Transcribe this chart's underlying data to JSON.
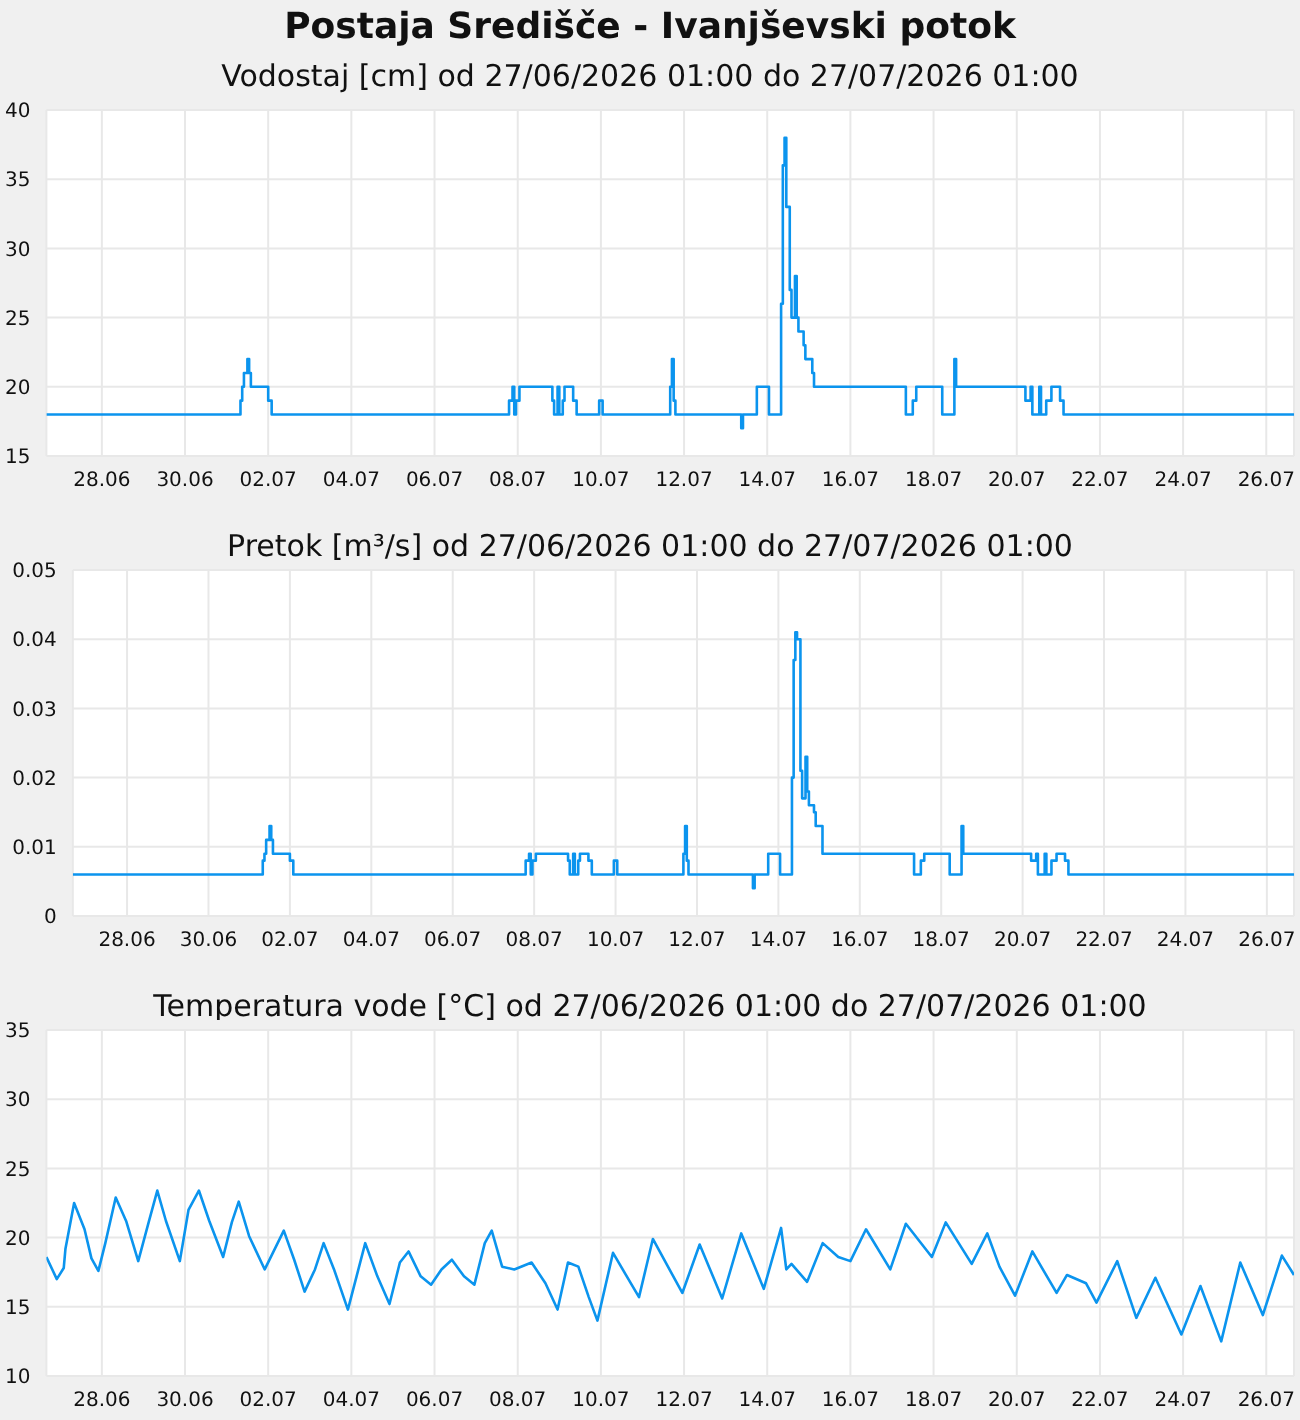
{
  "chart_data": [
    {
      "type": "step",
      "title": "Postaja Središče - Ivanjševski potok",
      "subtitle": "Vodostaj [cm] od 27/06/2026 01:00 do 27/07/2026 01:00",
      "color": "#0b94ee",
      "grid": true,
      "x": [
        "2026-06-27T01:00",
        "2026-07-01T17:00",
        "2026-07-01T18:00",
        "2026-07-01T19:00",
        "2026-07-01T21:00",
        "2026-07-01T22:00",
        "2026-07-01T23:00",
        "2026-07-02T09:00",
        "2026-07-02T11:00",
        "2026-07-08T04:00",
        "2026-07-08T06:00",
        "2026-07-08T07:00",
        "2026-07-08T08:00",
        "2026-07-08T10:00",
        "2026-07-09T05:00",
        "2026-07-09T06:00",
        "2026-07-09T08:00",
        "2026-07-09T09:00",
        "2026-07-09T11:00",
        "2026-07-09T12:00",
        "2026-07-09T17:00",
        "2026-07-09T19:00",
        "2026-07-10T08:00",
        "2026-07-10T10:00",
        "2026-07-12T01:00",
        "2026-07-12T02:00",
        "2026-07-12T03:00",
        "2026-07-12T04:00",
        "2026-07-13T18:00",
        "2026-07-13T19:00",
        "2026-07-14T03:00",
        "2026-07-14T10:00",
        "2026-07-14T17:00",
        "2026-07-14T18:00",
        "2026-07-14T19:00",
        "2026-07-14T20:00",
        "2026-07-14T22:00",
        "2026-07-14T23:00",
        "2026-07-15T01:00",
        "2026-07-15T02:00",
        "2026-07-15T03:00",
        "2026-07-15T06:00",
        "2026-07-15T07:00",
        "2026-07-15T11:00",
        "2026-07-15T12:00",
        "2026-07-17T17:00",
        "2026-07-17T21:00",
        "2026-07-17T23:00",
        "2026-07-18T14:00",
        "2026-07-18T21:00",
        "2026-07-18T22:00",
        "2026-07-20T14:00",
        "2026-07-20T17:00",
        "2026-07-20T18:00",
        "2026-07-20T22:00",
        "2026-07-20T23:00",
        "2026-07-21T02:00",
        "2026-07-21T05:00",
        "2026-07-21T10:00",
        "2026-07-21T12:00",
        "2026-07-27T01:00"
      ],
      "values": [
        18,
        19,
        20,
        21,
        22,
        21,
        20,
        19,
        18,
        19,
        20,
        18,
        19,
        20,
        19,
        18,
        20,
        18,
        19,
        20,
        19,
        18,
        19,
        18,
        20,
        22,
        19,
        18,
        17,
        18,
        20,
        18,
        26,
        36,
        38,
        33,
        27,
        25,
        28,
        25,
        24,
        23,
        22,
        21,
        20,
        18,
        19,
        20,
        18,
        22,
        20,
        19,
        20,
        18,
        20,
        18,
        19,
        20,
        19,
        18,
        18
      ],
      "xlim": [
        "2026-06-27T01:00",
        "2026-07-27T01:00"
      ],
      "xticks": [
        {
          "value": "2026-06-28T09:00",
          "label": "28.06"
        },
        {
          "value": "2026-06-30T09:00",
          "label": "30.06"
        },
        {
          "value": "2026-07-02T09:00",
          "label": "02.07"
        },
        {
          "value": "2026-07-04T09:00",
          "label": "04.07"
        },
        {
          "value": "2026-07-06T09:00",
          "label": "06.07"
        },
        {
          "value": "2026-07-08T09:00",
          "label": "08.07"
        },
        {
          "value": "2026-07-10T09:00",
          "label": "10.07"
        },
        {
          "value": "2026-07-12T09:00",
          "label": "12.07"
        },
        {
          "value": "2026-07-14T09:00",
          "label": "14.07"
        },
        {
          "value": "2026-07-16T09:00",
          "label": "16.07"
        },
        {
          "value": "2026-07-18T09:00",
          "label": "18.07"
        },
        {
          "value": "2026-07-20T09:00",
          "label": "20.07"
        },
        {
          "value": "2026-07-22T09:00",
          "label": "22.07"
        },
        {
          "value": "2026-07-24T09:00",
          "label": "24.07"
        },
        {
          "value": "2026-07-26T09:00",
          "label": "26.07"
        }
      ],
      "ylim": [
        15,
        40
      ],
      "yticks": [
        15,
        20,
        25,
        30,
        35,
        40
      ]
    },
    {
      "type": "step",
      "title": "Pretok [m³/s] od 27/06/2026 01:00 do 27/07/2026 01:00",
      "color": "#0b94ee",
      "grid": true,
      "x": [
        "2026-06-27T01:00",
        "2026-07-01T17:00",
        "2026-07-01T18:00",
        "2026-07-01T19:00",
        "2026-07-01T21:00",
        "2026-07-01T22:00",
        "2026-07-01T23:00",
        "2026-07-02T09:00",
        "2026-07-02T11:00",
        "2026-07-08T04:00",
        "2026-07-08T06:00",
        "2026-07-08T07:00",
        "2026-07-08T08:00",
        "2026-07-08T10:00",
        "2026-07-09T05:00",
        "2026-07-09T06:00",
        "2026-07-09T08:00",
        "2026-07-09T09:00",
        "2026-07-09T11:00",
        "2026-07-09T12:00",
        "2026-07-09T17:00",
        "2026-07-09T19:00",
        "2026-07-10T08:00",
        "2026-07-10T10:00",
        "2026-07-12T01:00",
        "2026-07-12T02:00",
        "2026-07-12T03:00",
        "2026-07-12T04:00",
        "2026-07-13T18:00",
        "2026-07-13T19:00",
        "2026-07-14T03:00",
        "2026-07-14T10:00",
        "2026-07-14T17:00",
        "2026-07-14T18:00",
        "2026-07-14T19:00",
        "2026-07-14T20:00",
        "2026-07-14T22:00",
        "2026-07-14T23:00",
        "2026-07-15T01:00",
        "2026-07-15T02:00",
        "2026-07-15T03:00",
        "2026-07-15T06:00",
        "2026-07-15T07:00",
        "2026-07-15T11:00",
        "2026-07-15T12:00",
        "2026-07-17T17:00",
        "2026-07-17T21:00",
        "2026-07-17T23:00",
        "2026-07-18T14:00",
        "2026-07-18T21:00",
        "2026-07-18T22:00",
        "2026-07-20T14:00",
        "2026-07-20T17:00",
        "2026-07-20T18:00",
        "2026-07-20T22:00",
        "2026-07-20T23:00",
        "2026-07-21T02:00",
        "2026-07-21T05:00",
        "2026-07-21T10:00",
        "2026-07-21T12:00",
        "2026-07-27T01:00"
      ],
      "values": [
        0.006,
        0.008,
        0.009,
        0.011,
        0.013,
        0.011,
        0.009,
        0.008,
        0.006,
        0.008,
        0.009,
        0.006,
        0.008,
        0.009,
        0.008,
        0.006,
        0.009,
        0.006,
        0.008,
        0.009,
        0.008,
        0.006,
        0.008,
        0.006,
        0.009,
        0.013,
        0.008,
        0.006,
        0.004,
        0.006,
        0.009,
        0.006,
        0.02,
        0.037,
        0.041,
        0.04,
        0.021,
        0.017,
        0.023,
        0.018,
        0.016,
        0.015,
        0.013,
        0.009,
        0.009,
        0.006,
        0.008,
        0.009,
        0.006,
        0.013,
        0.009,
        0.008,
        0.009,
        0.006,
        0.009,
        0.006,
        0.008,
        0.009,
        0.008,
        0.006,
        0.006
      ],
      "xlim": [
        "2026-06-27T01:00",
        "2026-07-27T01:00"
      ],
      "xticks": [
        {
          "value": "2026-06-28T09:00",
          "label": "28.06"
        },
        {
          "value": "2026-06-30T09:00",
          "label": "30.06"
        },
        {
          "value": "2026-07-02T09:00",
          "label": "02.07"
        },
        {
          "value": "2026-07-04T09:00",
          "label": "04.07"
        },
        {
          "value": "2026-07-06T09:00",
          "label": "06.07"
        },
        {
          "value": "2026-07-08T09:00",
          "label": "08.07"
        },
        {
          "value": "2026-07-10T09:00",
          "label": "10.07"
        },
        {
          "value": "2026-07-12T09:00",
          "label": "12.07"
        },
        {
          "value": "2026-07-14T09:00",
          "label": "14.07"
        },
        {
          "value": "2026-07-16T09:00",
          "label": "16.07"
        },
        {
          "value": "2026-07-18T09:00",
          "label": "18.07"
        },
        {
          "value": "2026-07-20T09:00",
          "label": "20.07"
        },
        {
          "value": "2026-07-22T09:00",
          "label": "22.07"
        },
        {
          "value": "2026-07-24T09:00",
          "label": "24.07"
        },
        {
          "value": "2026-07-26T09:00",
          "label": "26.07"
        }
      ],
      "ylim": [
        0,
        0.05
      ],
      "yticks": [
        0,
        0.01,
        0.02,
        0.03,
        0.04,
        0.05
      ]
    },
    {
      "type": "line",
      "title": "Temperatura vode [°C] od 27/06/2026 01:00 do 27/07/2026 01:00",
      "color": "#0b94ee",
      "grid": true,
      "x": [
        "2026-06-27T01:00",
        "2026-06-27T07:00",
        "2026-06-27T11:00",
        "2026-06-27T12:00",
        "2026-06-27T17:00",
        "2026-06-27T23:00",
        "2026-06-28T03:00",
        "2026-06-28T07:00",
        "2026-06-28T11:00",
        "2026-06-28T17:00",
        "2026-06-28T23:00",
        "2026-06-29T06:00",
        "2026-06-29T12:00",
        "2026-06-29T17:00",
        "2026-06-29T22:00",
        "2026-06-30T06:00",
        "2026-06-30T11:00",
        "2026-06-30T17:00",
        "2026-06-30T23:00",
        "2026-07-01T07:00",
        "2026-07-01T12:00",
        "2026-07-01T16:00",
        "2026-07-01T22:00",
        "2026-07-02T07:00",
        "2026-07-02T18:00",
        "2026-07-03T00:00",
        "2026-07-03T06:00",
        "2026-07-03T12:00",
        "2026-07-03T17:00",
        "2026-07-03T23:00",
        "2026-07-04T07:00",
        "2026-07-04T12:00",
        "2026-07-04T17:00",
        "2026-07-05T00:00",
        "2026-07-05T07:00",
        "2026-07-05T13:00",
        "2026-07-05T18:00",
        "2026-07-06T01:00",
        "2026-07-06T07:00",
        "2026-07-06T13:00",
        "2026-07-06T19:00",
        "2026-07-07T02:00",
        "2026-07-07T08:00",
        "2026-07-07T14:00",
        "2026-07-07T18:00",
        "2026-07-08T00:00",
        "2026-07-08T07:00",
        "2026-07-08T17:00",
        "2026-07-09T01:00",
        "2026-07-09T08:00",
        "2026-07-09T14:00",
        "2026-07-09T20:00",
        "2026-07-10T02:00",
        "2026-07-10T07:00",
        "2026-07-10T16:00",
        "2026-07-10T23:00",
        "2026-07-11T07:00",
        "2026-07-11T15:00",
        "2026-07-12T08:00",
        "2026-07-12T18:00",
        "2026-07-13T07:00",
        "2026-07-13T18:00",
        "2026-07-14T07:00",
        "2026-07-14T17:00",
        "2026-07-14T20:00",
        "2026-07-14T23:00",
        "2026-07-15T08:00",
        "2026-07-15T17:00",
        "2026-07-16T02:00",
        "2026-07-16T09:00",
        "2026-07-16T18:00",
        "2026-07-17T08:00",
        "2026-07-17T17:00",
        "2026-07-18T08:00",
        "2026-07-18T16:00",
        "2026-07-19T07:00",
        "2026-07-19T16:00",
        "2026-07-19T23:00",
        "2026-07-20T08:00",
        "2026-07-20T18:00",
        "2026-07-21T08:00",
        "2026-07-21T14:00",
        "2026-07-22T01:00",
        "2026-07-22T07:00",
        "2026-07-22T19:00",
        "2026-07-23T06:00",
        "2026-07-23T17:00",
        "2026-07-24T08:00",
        "2026-07-24T19:00",
        "2026-07-25T07:00",
        "2026-07-25T18:00",
        "2026-07-26T07:00",
        "2026-07-26T18:00",
        "2026-07-27T01:00"
      ],
      "values": [
        18.6,
        17.0,
        17.8,
        19.2,
        22.5,
        20.6,
        18.5,
        17.6,
        19.6,
        22.9,
        21.2,
        18.3,
        21.1,
        23.4,
        21.2,
        18.3,
        22.0,
        23.4,
        21.2,
        18.6,
        21.1,
        22.6,
        20.1,
        17.7,
        20.5,
        18.4,
        16.1,
        17.7,
        19.6,
        17.7,
        14.8,
        17.2,
        19.6,
        17.2,
        15.2,
        18.2,
        19.0,
        17.2,
        16.6,
        17.7,
        18.4,
        17.2,
        16.6,
        19.6,
        20.5,
        17.9,
        17.7,
        18.2,
        16.7,
        14.8,
        18.2,
        17.9,
        15.7,
        14.0,
        18.9,
        17.4,
        15.7,
        19.9,
        16.0,
        19.5,
        15.6,
        20.3,
        16.3,
        20.7,
        17.7,
        18.1,
        16.8,
        19.6,
        18.6,
        18.3,
        20.6,
        17.7,
        21.0,
        18.6,
        21.1,
        18.1,
        20.3,
        17.9,
        15.8,
        19.0,
        16.0,
        17.3,
        16.7,
        15.3,
        18.3,
        14.2,
        17.1,
        13.0,
        16.5,
        12.5,
        18.2,
        14.4,
        18.7,
        17.3
      ],
      "xlim": [
        "2026-06-27T01:00",
        "2026-07-27T01:00"
      ],
      "xticks": [
        {
          "value": "2026-06-28T09:00",
          "label": "28.06"
        },
        {
          "value": "2026-06-30T09:00",
          "label": "30.06"
        },
        {
          "value": "2026-07-02T09:00",
          "label": "02.07"
        },
        {
          "value": "2026-07-04T09:00",
          "label": "04.07"
        },
        {
          "value": "2026-07-06T09:00",
          "label": "06.07"
        },
        {
          "value": "2026-07-08T09:00",
          "label": "08.07"
        },
        {
          "value": "2026-07-10T09:00",
          "label": "10.07"
        },
        {
          "value": "2026-07-12T09:00",
          "label": "12.07"
        },
        {
          "value": "2026-07-14T09:00",
          "label": "14.07"
        },
        {
          "value": "2026-07-16T09:00",
          "label": "16.07"
        },
        {
          "value": "2026-07-18T09:00",
          "label": "18.07"
        },
        {
          "value": "2026-07-20T09:00",
          "label": "20.07"
        },
        {
          "value": "2026-07-22T09:00",
          "label": "22.07"
        },
        {
          "value": "2026-07-24T09:00",
          "label": "24.07"
        },
        {
          "value": "2026-07-26T09:00",
          "label": "26.07"
        }
      ],
      "ylim": [
        10,
        35
      ],
      "yticks": [
        10,
        15,
        20,
        25,
        30,
        35
      ]
    }
  ]
}
